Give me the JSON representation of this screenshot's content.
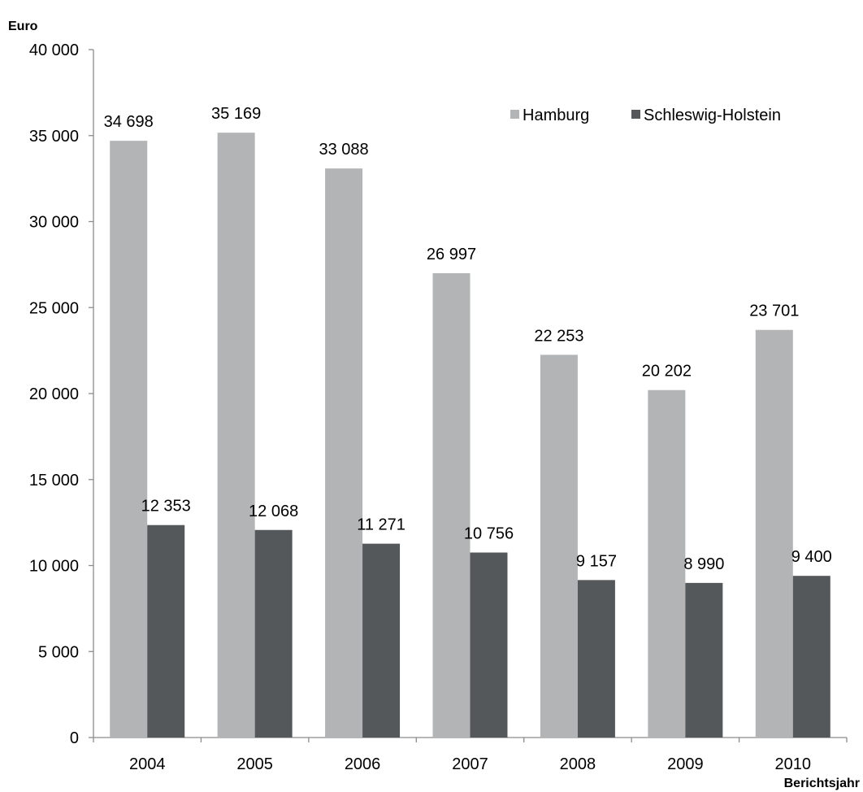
{
  "chart_data": {
    "type": "bar",
    "ylabel": "Euro",
    "xlabel": "Berichtsjahr",
    "ylim": [
      0,
      40000
    ],
    "y_ticks": [
      0,
      5000,
      10000,
      15000,
      20000,
      25000,
      30000,
      35000,
      40000
    ],
    "y_tick_labels": [
      "0",
      "5 000",
      "10 000",
      "15 000",
      "20 000",
      "25 000",
      "30 000",
      "35 000",
      "40 000"
    ],
    "categories": [
      "2004",
      "2005",
      "2006",
      "2007",
      "2008",
      "2009",
      "2010"
    ],
    "series": [
      {
        "name": "Hamburg",
        "color": "#b2b4b6",
        "values": [
          34698,
          35169,
          33088,
          26997,
          22253,
          20202,
          23701
        ],
        "labels": [
          "34 698",
          "35 169",
          "33 088",
          "26 997",
          "22 253",
          "20 202",
          "23 701"
        ]
      },
      {
        "name": "Schleswig-Holstein",
        "color": "#55585b",
        "values": [
          12353,
          12068,
          11271,
          10756,
          9157,
          8990,
          9400
        ],
        "labels": [
          "12 353",
          "12 068",
          "11 271",
          "10 756",
          "9 157",
          "8 990",
          "9 400"
        ]
      }
    ],
    "grid": false,
    "legend_position": "top-right"
  }
}
